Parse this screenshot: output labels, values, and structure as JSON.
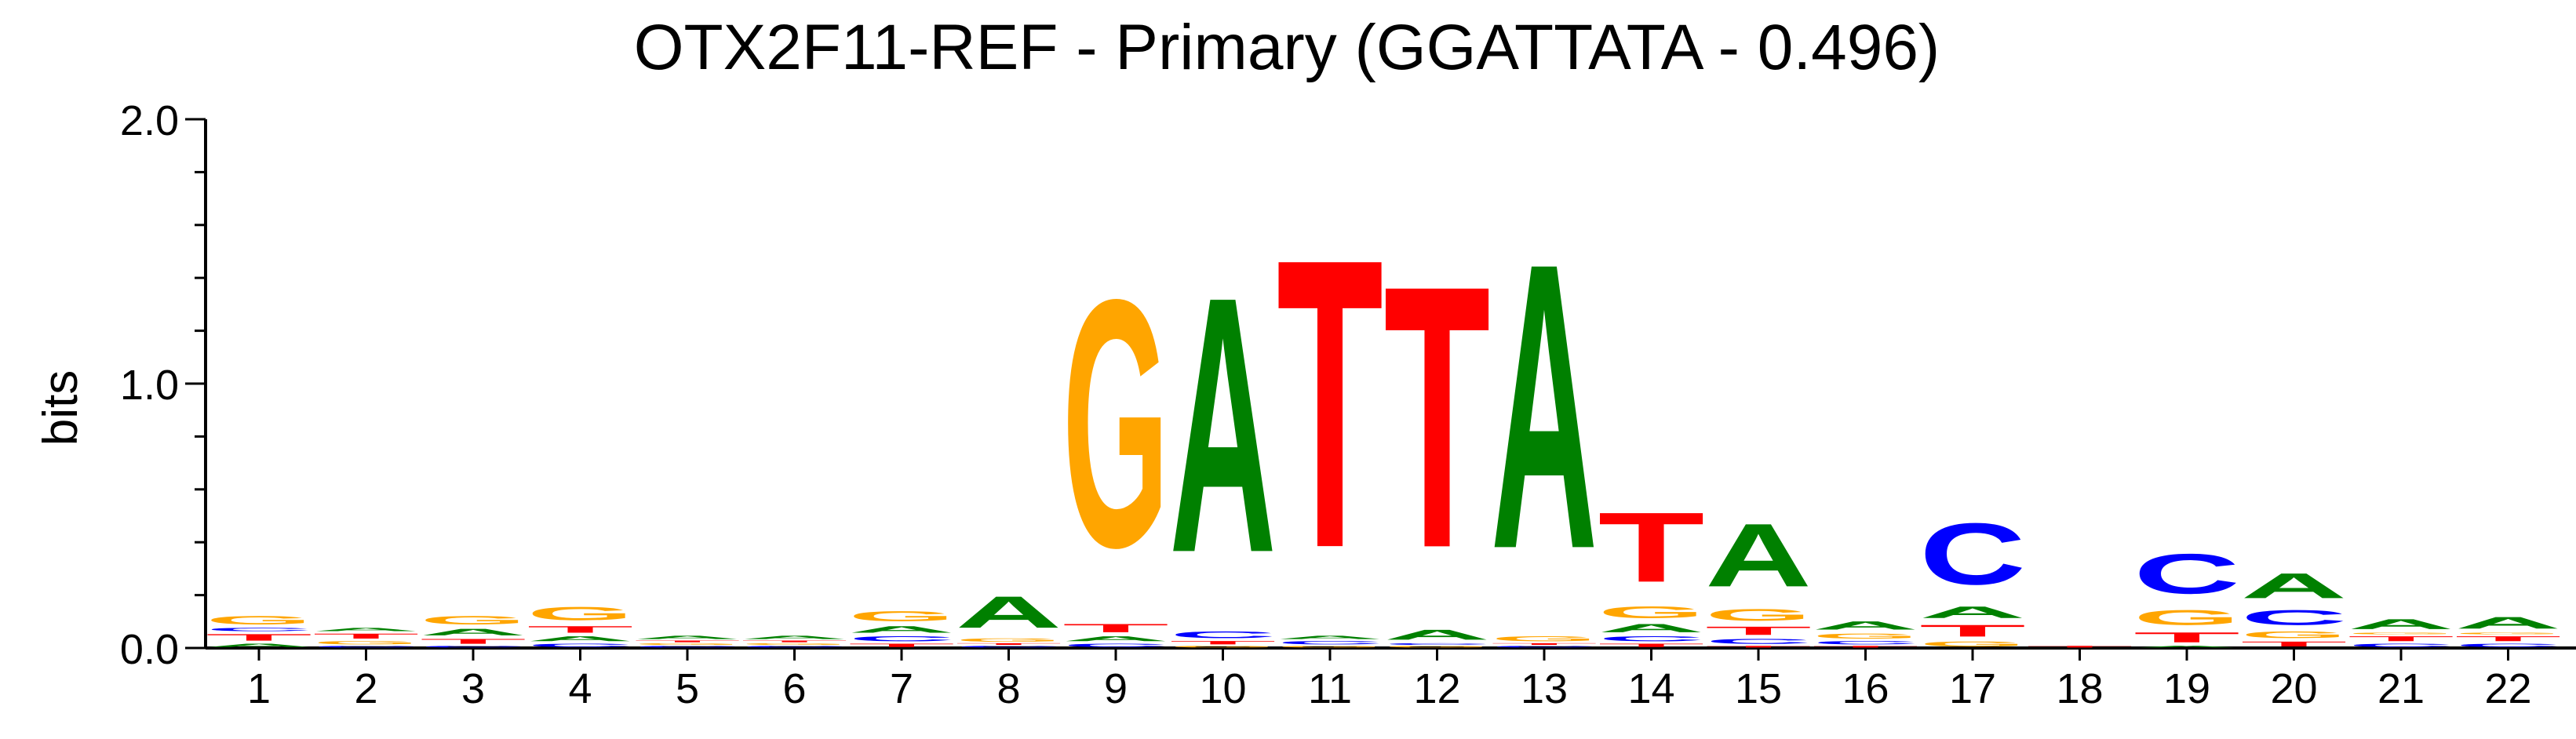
{
  "chart_data": {
    "type": "sequence-logo",
    "title": "OTX2F11-REF - Primary (GGATTATA - 0.496)",
    "ylabel": "bits",
    "ylim": [
      0,
      2
    ],
    "y_tick_labels": [
      "0.0",
      "1.0",
      "2.0"
    ],
    "positions": [
      "1",
      "2",
      "3",
      "4",
      "5",
      "6",
      "7",
      "8",
      "9",
      "10",
      "11",
      "12",
      "13",
      "14",
      "15",
      "16",
      "17",
      "18",
      "19",
      "20",
      "21",
      "22"
    ],
    "colors": {
      "A": "#008000",
      "C": "#0000ff",
      "G": "#ffa500",
      "T": "#ff0000"
    },
    "stacks": [
      [
        [
          "A",
          0.02
        ],
        [
          "T",
          0.04
        ],
        [
          "C",
          0.02
        ],
        [
          "G",
          0.05
        ]
      ],
      [
        [
          "C",
          0.01
        ],
        [
          "G",
          0.02
        ],
        [
          "T",
          0.03
        ],
        [
          "A",
          0.02
        ]
      ],
      [
        [
          "C",
          0.01
        ],
        [
          "T",
          0.03
        ],
        [
          "A",
          0.04
        ],
        [
          "G",
          0.05
        ]
      ],
      [
        [
          "C",
          0.02
        ],
        [
          "A",
          0.03
        ],
        [
          "T",
          0.04
        ],
        [
          "G",
          0.08
        ]
      ],
      [
        [
          "C",
          0.01
        ],
        [
          "G",
          0.01
        ],
        [
          "T",
          0.01
        ],
        [
          "A",
          0.02
        ]
      ],
      [
        [
          "C",
          0.01
        ],
        [
          "G",
          0.01
        ],
        [
          "T",
          0.01
        ],
        [
          "A",
          0.02
        ]
      ],
      [
        [
          "T",
          0.02
        ],
        [
          "C",
          0.03
        ],
        [
          "A",
          0.04
        ],
        [
          "G",
          0.06
        ]
      ],
      [
        [
          "C",
          0.01
        ],
        [
          "T",
          0.01
        ],
        [
          "G",
          0.02
        ],
        [
          "A",
          0.19
        ]
      ],
      [
        [
          "C",
          0.02
        ],
        [
          "A",
          0.03
        ],
        [
          "T",
          0.05
        ],
        [
          "G",
          1.49
        ]
      ],
      [
        [
          "G",
          0.01
        ],
        [
          "T",
          0.02
        ],
        [
          "C",
          0.04
        ],
        [
          "A",
          1.54
        ]
      ],
      [
        [
          "G",
          0.01
        ],
        [
          "C",
          0.02
        ],
        [
          "A",
          0.02
        ],
        [
          "T",
          1.74
        ]
      ],
      [
        [
          "G",
          0.01
        ],
        [
          "C",
          0.01
        ],
        [
          "A",
          0.06
        ],
        [
          "T",
          1.58
        ]
      ],
      [
        [
          "C",
          0.01
        ],
        [
          "T",
          0.01
        ],
        [
          "G",
          0.03
        ],
        [
          "A",
          1.72
        ]
      ],
      [
        [
          "T",
          0.02
        ],
        [
          "C",
          0.03
        ],
        [
          "A",
          0.05
        ],
        [
          "G",
          0.07
        ],
        [
          "T",
          0.42
        ]
      ],
      [
        [
          "T",
          0.01
        ],
        [
          "C",
          0.03
        ],
        [
          "T",
          0.05
        ],
        [
          "G",
          0.07
        ],
        [
          "A",
          0.38
        ]
      ],
      [
        [
          "T",
          0.01
        ],
        [
          "C",
          0.02
        ],
        [
          "G",
          0.03
        ],
        [
          "A",
          0.05
        ]
      ],
      [
        [
          "G",
          0.03
        ],
        [
          "T",
          0.07
        ],
        [
          "A",
          0.07
        ],
        [
          "C",
          0.37
        ]
      ],
      [
        [
          "T",
          0.01
        ]
      ],
      [
        [
          "A",
          0.01
        ],
        [
          "T",
          0.06
        ],
        [
          "G",
          0.09
        ],
        [
          "C",
          0.24
        ]
      ],
      [
        [
          "T",
          0.03
        ],
        [
          "G",
          0.04
        ],
        [
          "C",
          0.09
        ],
        [
          "A",
          0.15
        ]
      ],
      [
        [
          "C",
          0.02
        ],
        [
          "T",
          0.03
        ],
        [
          "G",
          0.01
        ],
        [
          "A",
          0.06
        ]
      ],
      [
        [
          "C",
          0.02
        ],
        [
          "T",
          0.03
        ],
        [
          "G",
          0.01
        ],
        [
          "A",
          0.07
        ]
      ]
    ]
  }
}
